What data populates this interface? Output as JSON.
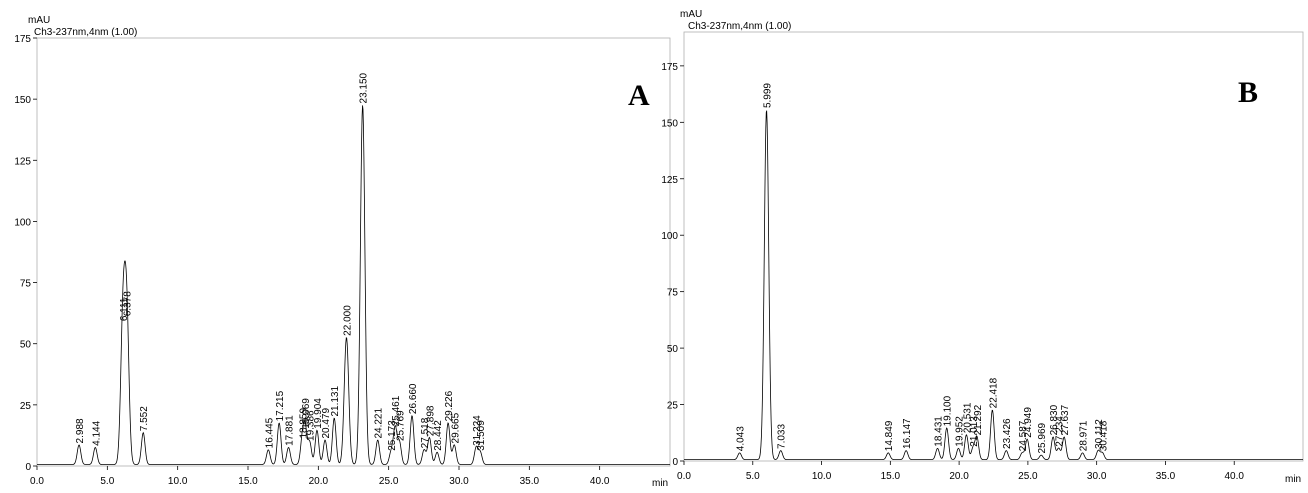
{
  "chart_data": [
    {
      "type": "line",
      "panel_label": "A",
      "ylabel": "mAU",
      "xlabel": "min",
      "channel_label": "Ch3-237nm,4nm (1.00)",
      "xlim": [
        0,
        45
      ],
      "ylim": [
        0,
        175
      ],
      "x_ticks": [
        "0.0",
        "5.0",
        "10.0",
        "15.0",
        "20.0",
        "25.0",
        "30.0",
        "35.0",
        "40.0"
      ],
      "y_ticks": [
        "0",
        "25",
        "50",
        "75",
        "100",
        "125",
        "150",
        "175"
      ],
      "peaks": [
        {
          "rt": "2.988",
          "x": 2.988,
          "y": 8
        },
        {
          "rt": "4.144",
          "x": 4.144,
          "y": 7
        },
        {
          "rt": "6.111",
          "x": 6.111,
          "y": 58
        },
        {
          "rt": "6.378",
          "x": 6.378,
          "y": 60
        },
        {
          "rt": "7.552",
          "x": 7.552,
          "y": 13
        },
        {
          "rt": "16.445",
          "x": 16.445,
          "y": 6
        },
        {
          "rt": "17.215",
          "x": 17.215,
          "y": 17
        },
        {
          "rt": "17.881",
          "x": 17.881,
          "y": 7
        },
        {
          "rt": "18.859",
          "x": 18.859,
          "y": 10
        },
        {
          "rt": "19.069",
          "x": 19.069,
          "y": 14
        },
        {
          "rt": "19.386",
          "x": 19.386,
          "y": 9
        },
        {
          "rt": "19.904",
          "x": 19.904,
          "y": 14
        },
        {
          "rt": "20.479",
          "x": 20.479,
          "y": 10
        },
        {
          "rt": "21.131",
          "x": 21.131,
          "y": 19
        },
        {
          "rt": "22.000",
          "x": 22.0,
          "y": 52
        },
        {
          "rt": "23.150",
          "x": 23.15,
          "y": 147
        },
        {
          "rt": "24.221",
          "x": 24.221,
          "y": 10
        },
        {
          "rt": "25.173",
          "x": 25.173,
          "y": 5
        },
        {
          "rt": "25.769",
          "x": 25.769,
          "y": 9
        },
        {
          "rt": "25.461",
          "x": 25.461,
          "y": 15
        },
        {
          "rt": "26.660",
          "x": 26.66,
          "y": 20
        },
        {
          "rt": "27.518",
          "x": 27.518,
          "y": 6
        },
        {
          "rt": "27.898",
          "x": 27.898,
          "y": 11
        },
        {
          "rt": "28.442",
          "x": 28.442,
          "y": 5
        },
        {
          "rt": "29.226",
          "x": 29.226,
          "y": 17
        },
        {
          "rt": "29.665",
          "x": 29.665,
          "y": 8
        },
        {
          "rt": "31.224",
          "x": 31.224,
          "y": 7
        },
        {
          "rt": "31.509",
          "x": 31.509,
          "y": 5
        }
      ]
    },
    {
      "type": "line",
      "panel_label": "B",
      "ylabel": "mAU",
      "xlabel": "min",
      "channel_label": "Ch3-237nm,4nm (1.00)",
      "xlim": [
        0,
        45
      ],
      "ylim": [
        0,
        190
      ],
      "x_ticks": [
        "0.0",
        "5.0",
        "10.0",
        "15.0",
        "20.0",
        "25.0",
        "30.0",
        "35.0",
        "40.0"
      ],
      "y_ticks": [
        "0",
        "25",
        "50",
        "75",
        "100",
        "125",
        "150",
        "175"
      ],
      "peaks": [
        {
          "rt": "4.043",
          "x": 4.043,
          "y": 3
        },
        {
          "rt": "5.999",
          "x": 5.999,
          "y": 155
        },
        {
          "rt": "7.033",
          "x": 7.033,
          "y": 4
        },
        {
          "rt": "14.849",
          "x": 14.849,
          "y": 3
        },
        {
          "rt": "16.147",
          "x": 16.147,
          "y": 4
        },
        {
          "rt": "18.431",
          "x": 18.431,
          "y": 5
        },
        {
          "rt": "19.100",
          "x": 19.1,
          "y": 14
        },
        {
          "rt": "19.952",
          "x": 19.952,
          "y": 5
        },
        {
          "rt": "20.531",
          "x": 20.531,
          "y": 11
        },
        {
          "rt": "21.013",
          "x": 21.013,
          "y": 5
        },
        {
          "rt": "21.292",
          "x": 21.292,
          "y": 10
        },
        {
          "rt": "22.418",
          "x": 22.418,
          "y": 22
        },
        {
          "rt": "23.426",
          "x": 23.426,
          "y": 4
        },
        {
          "rt": "24.587",
          "x": 24.587,
          "y": 3
        },
        {
          "rt": "24.949",
          "x": 24.949,
          "y": 9
        },
        {
          "rt": "25.969",
          "x": 25.969,
          "y": 2
        },
        {
          "rt": "26.830",
          "x": 26.83,
          "y": 10
        },
        {
          "rt": "27.234",
          "x": 27.234,
          "y": 5
        },
        {
          "rt": "27.637",
          "x": 27.637,
          "y": 10
        },
        {
          "rt": "28.971",
          "x": 28.971,
          "y": 3
        },
        {
          "rt": "30.112",
          "x": 30.112,
          "y": 4
        },
        {
          "rt": "30.418",
          "x": 30.418,
          "y": 3
        }
      ]
    }
  ]
}
